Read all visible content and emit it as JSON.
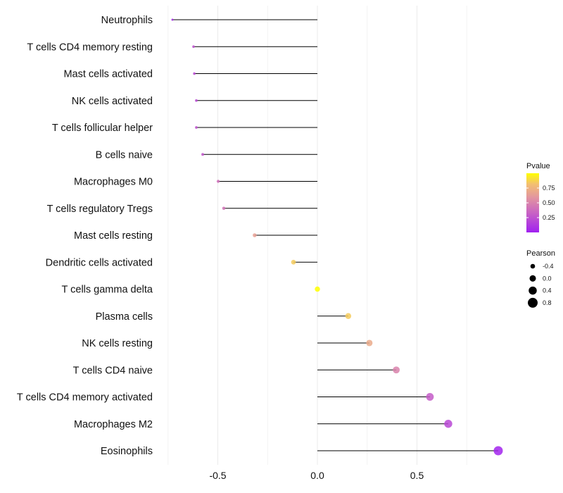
{
  "chart_data": {
    "type": "lollipop",
    "title": "",
    "xlabel": "",
    "ylabel": "",
    "xlim": [
      -0.76,
      0.95
    ],
    "x_ticks": [
      -0.5,
      0.0,
      0.5
    ],
    "x_tick_labels": [
      "-0.5",
      "0.0",
      "0.5"
    ],
    "grid": true,
    "categories": [
      "Neutrophils",
      "T cells CD4 memory resting",
      "Mast cells activated",
      "NK cells activated",
      "T cells follicular helper",
      "B cells naive",
      "Macrophages M0",
      "T cells regulatory  Tregs",
      "Mast cells resting",
      "Dendritic cells activated",
      "T cells gamma delta",
      "Plasma cells",
      "NK cells resting",
      "T cells CD4 naive",
      "T cells CD4 memory activated",
      "Macrophages M2",
      "Eosinophils"
    ],
    "pearson": [
      -0.728,
      -0.622,
      -0.618,
      -0.608,
      -0.608,
      -0.576,
      -0.498,
      -0.47,
      -0.315,
      -0.12,
      0.0,
      0.155,
      0.261,
      0.396,
      0.565,
      0.657,
      0.908
    ],
    "pvalue": [
      0.05,
      0.25,
      0.22,
      0.22,
      0.25,
      0.28,
      0.4,
      0.42,
      0.65,
      0.85,
      1.0,
      0.85,
      0.7,
      0.5,
      0.3,
      0.2,
      0.02
    ],
    "legend_color": {
      "title": "Pvalue",
      "ticks": [
        "0.25",
        "0.50",
        "0.75"
      ],
      "tick_values": [
        0.25,
        0.5,
        0.75
      ],
      "low": "#A020F0",
      "high": "#FFFF00",
      "placement": "right"
    },
    "legend_size": {
      "title": "Pearson",
      "labels": [
        "-0.4",
        "0.0",
        "0.4",
        "0.8"
      ],
      "values": [
        -0.4,
        0.0,
        0.4,
        0.8
      ],
      "placement": "right"
    }
  }
}
